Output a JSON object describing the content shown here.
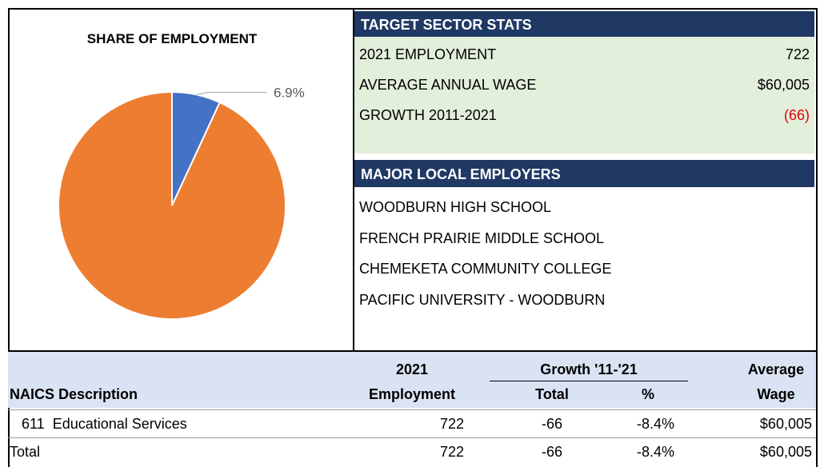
{
  "chart_data": {
    "type": "pie",
    "title": "SHARE OF EMPLOYMENT",
    "values": [
      6.9,
      93.1
    ],
    "value_labels": [
      "6.9%",
      null
    ],
    "colors": [
      "#4472c4",
      "#ed7d31"
    ]
  },
  "stats": {
    "title": "TARGET SECTOR STATS",
    "rows": [
      [
        "2021 EMPLOYMENT",
        "722"
      ],
      [
        "AVERAGE ANNUAL WAGE",
        "$60,005"
      ],
      [
        "GROWTH 2011-2021",
        "(66)"
      ]
    ]
  },
  "employers": {
    "title": "MAJOR LOCAL EMPLOYERS",
    "items": [
      "WOODBURN HIGH SCHOOL",
      "FRENCH PRAIRIE MIDDLE SCHOOL",
      "CHEMEKETA COMMUNITY COLLEGE",
      "PACIFIC UNIVERSITY - WOODBURN"
    ]
  },
  "table": {
    "header": {
      "employment": [
        "2021",
        "Employment"
      ],
      "growth": "Growth '11-'21",
      "total": "Total",
      "pct": "%",
      "wage": [
        "Average",
        "Wage"
      ],
      "description": "NAICS Description"
    },
    "rows": [
      [
        "611  Educational Services",
        "722",
        "-66",
        "-8.4%",
        "$60,005"
      ],
      [
        "Total",
        "722",
        "-66",
        "-8.4%",
        "$60,005"
      ]
    ]
  }
}
